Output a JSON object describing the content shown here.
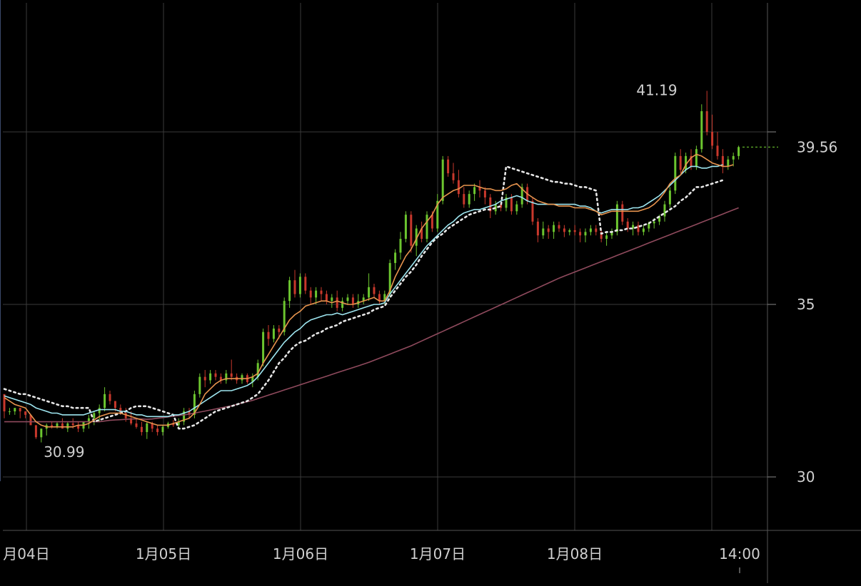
{
  "chart_data": {
    "type": "candlestick",
    "x_tick_labels": [
      "月04日",
      "1月05日",
      "1月06日",
      "1月07日",
      "1月08日",
      "14:00"
    ],
    "y_tick_labels": [
      "30",
      "35"
    ],
    "y_range": [
      28.5,
      42.8
    ],
    "current_price": {
      "value": 39.56,
      "label": "39.56"
    },
    "annotations": [
      {
        "text": "41.19",
        "kind": "high",
        "value": 41.19,
        "bar": 129
      },
      {
        "text": "30.99",
        "kind": "low",
        "value": 30.99,
        "bar": 28
      }
    ],
    "colors": {
      "up": "#6cc52f",
      "down": "#c8382c",
      "ma_orange": "#e8944e",
      "ma_cyan": "#9ee6f0",
      "ma_dotted": "#e6e6e6",
      "ma_maroon": "#8f4a5d",
      "grid": "#3a3a3a",
      "label": "#d0d0d0"
    },
    "candles": [
      [
        32.4,
        32.4,
        31.7,
        31.9
      ],
      [
        31.9,
        32.0,
        31.8,
        31.9
      ],
      [
        31.9,
        32.0,
        31.8,
        32.0
      ],
      [
        32.0,
        32.0,
        31.7,
        31.9
      ],
      [
        31.9,
        31.9,
        31.7,
        31.8
      ],
      [
        31.8,
        31.8,
        31.5,
        31.5
      ],
      [
        31.5,
        31.5,
        31.1,
        31.15
      ],
      [
        31.15,
        31.4,
        31.0,
        31.4
      ],
      [
        31.4,
        31.55,
        31.2,
        31.5
      ],
      [
        31.5,
        31.6,
        31.4,
        31.45
      ],
      [
        31.45,
        31.6,
        31.4,
        31.55
      ],
      [
        31.55,
        31.7,
        31.45,
        31.4
      ],
      [
        31.4,
        31.6,
        31.3,
        31.55
      ],
      [
        31.55,
        31.7,
        31.4,
        31.5
      ],
      [
        31.5,
        31.6,
        31.3,
        31.4
      ],
      [
        31.4,
        31.6,
        31.3,
        31.6
      ],
      [
        31.6,
        31.8,
        31.4,
        31.7
      ],
      [
        31.7,
        31.9,
        31.5,
        31.85
      ],
      [
        31.85,
        32.1,
        31.6,
        32.0
      ],
      [
        32.0,
        32.6,
        31.9,
        32.4
      ],
      [
        32.4,
        32.5,
        32.1,
        32.2
      ],
      [
        32.2,
        32.2,
        31.9,
        32.0
      ],
      [
        32.0,
        32.1,
        31.8,
        31.85
      ],
      [
        31.85,
        32.0,
        31.6,
        31.7
      ],
      [
        31.7,
        31.9,
        31.5,
        31.55
      ],
      [
        31.55,
        31.7,
        31.4,
        31.45
      ],
      [
        31.45,
        31.6,
        31.2,
        31.3
      ],
      [
        31.3,
        31.6,
        31.1,
        31.55
      ],
      [
        31.55,
        31.6,
        31.3,
        31.4
      ],
      [
        31.4,
        31.5,
        31.2,
        31.3
      ],
      [
        31.3,
        31.5,
        31.2,
        31.45
      ],
      [
        31.45,
        31.6,
        31.4,
        31.55
      ],
      [
        31.55,
        31.65,
        31.45,
        31.5
      ],
      [
        31.5,
        31.7,
        31.4,
        31.6
      ],
      [
        31.6,
        32.0,
        31.5,
        31.9
      ],
      [
        31.9,
        32.0,
        31.7,
        31.8
      ],
      [
        31.8,
        32.5,
        31.7,
        32.4
      ],
      [
        32.4,
        33.0,
        32.3,
        32.9
      ],
      [
        32.9,
        33.1,
        32.6,
        32.8
      ],
      [
        32.8,
        33.1,
        32.7,
        33.0
      ],
      [
        33.0,
        33.1,
        32.8,
        32.9
      ],
      [
        32.9,
        33.0,
        32.7,
        32.8
      ],
      [
        32.8,
        33.1,
        32.7,
        33.0
      ],
      [
        33.0,
        33.4,
        32.8,
        32.9
      ],
      [
        32.9,
        33.0,
        32.7,
        32.8
      ],
      [
        32.8,
        33.0,
        32.7,
        32.95
      ],
      [
        32.95,
        33.0,
        32.7,
        32.75
      ],
      [
        32.75,
        33.0,
        32.6,
        32.9
      ],
      [
        32.9,
        33.4,
        32.8,
        33.3
      ],
      [
        33.3,
        34.3,
        33.2,
        34.2
      ],
      [
        34.2,
        34.4,
        33.8,
        34.0
      ],
      [
        34.0,
        34.4,
        33.9,
        34.3
      ],
      [
        34.3,
        34.4,
        34.0,
        34.2
      ],
      [
        34.2,
        35.2,
        34.1,
        35.1
      ],
      [
        35.1,
        35.8,
        34.9,
        35.7
      ],
      [
        35.7,
        36.0,
        35.2,
        35.3
      ],
      [
        35.3,
        35.9,
        35.2,
        35.8
      ],
      [
        35.8,
        35.9,
        35.3,
        35.4
      ],
      [
        35.4,
        35.5,
        35.0,
        35.2
      ],
      [
        35.2,
        35.5,
        35.0,
        35.4
      ],
      [
        35.4,
        35.5,
        35.1,
        35.3
      ],
      [
        35.3,
        35.4,
        35.0,
        35.1
      ],
      [
        35.1,
        35.3,
        34.9,
        35.2
      ],
      [
        35.2,
        35.4,
        34.8,
        34.9
      ],
      [
        34.9,
        35.2,
        34.8,
        35.1
      ],
      [
        35.1,
        35.3,
        35.0,
        35.2
      ],
      [
        35.2,
        35.3,
        34.9,
        35.0
      ],
      [
        35.0,
        35.3,
        34.9,
        35.1
      ],
      [
        35.1,
        35.3,
        35.0,
        35.2
      ],
      [
        35.2,
        35.9,
        35.1,
        35.5
      ],
      [
        35.5,
        35.6,
        35.2,
        35.3
      ],
      [
        35.3,
        35.4,
        35.0,
        35.1
      ],
      [
        35.1,
        35.4,
        35.0,
        35.3
      ],
      [
        35.3,
        36.3,
        35.2,
        36.2
      ],
      [
        36.2,
        36.6,
        36.0,
        36.5
      ],
      [
        36.5,
        37.1,
        36.3,
        36.9
      ],
      [
        36.9,
        37.7,
        36.8,
        37.6
      ],
      [
        37.6,
        37.7,
        36.5,
        36.7
      ],
      [
        36.7,
        37.3,
        36.4,
        37.2
      ],
      [
        37.2,
        37.4,
        36.8,
        36.9
      ],
      [
        36.9,
        37.7,
        36.8,
        37.6
      ],
      [
        37.6,
        37.7,
        37.1,
        37.2
      ],
      [
        37.2,
        38.2,
        37.1,
        38.0
      ],
      [
        38.0,
        39.3,
        37.9,
        39.2
      ],
      [
        39.2,
        39.3,
        38.7,
        38.8
      ],
      [
        38.8,
        39.1,
        38.5,
        38.6
      ],
      [
        38.6,
        38.9,
        38.1,
        38.2
      ],
      [
        38.2,
        38.4,
        37.8,
        37.9
      ],
      [
        37.9,
        38.3,
        37.8,
        38.2
      ],
      [
        38.2,
        38.5,
        38.0,
        38.4
      ],
      [
        38.4,
        38.6,
        38.1,
        38.3
      ],
      [
        38.3,
        38.4,
        37.9,
        38.1
      ],
      [
        38.1,
        38.2,
        37.5,
        37.7
      ],
      [
        37.7,
        38.0,
        37.6,
        37.9
      ],
      [
        37.9,
        38.0,
        37.7,
        37.8
      ],
      [
        37.8,
        38.2,
        37.7,
        38.1
      ],
      [
        38.1,
        38.2,
        37.6,
        37.7
      ],
      [
        37.7,
        38.0,
        37.6,
        37.9
      ],
      [
        37.9,
        38.5,
        37.8,
        38.4
      ],
      [
        38.4,
        38.5,
        37.9,
        38.0
      ],
      [
        38.0,
        38.1,
        37.3,
        37.4
      ],
      [
        37.4,
        37.5,
        36.8,
        37.0
      ],
      [
        37.0,
        37.4,
        36.9,
        37.2
      ],
      [
        37.2,
        37.3,
        36.9,
        37.1
      ],
      [
        37.1,
        37.4,
        36.9,
        37.3
      ],
      [
        37.3,
        37.4,
        37.1,
        37.2
      ],
      [
        37.2,
        37.3,
        36.95,
        37.1
      ],
      [
        37.1,
        37.2,
        37.0,
        37.15
      ],
      [
        37.15,
        37.3,
        37.0,
        37.1
      ],
      [
        37.1,
        37.2,
        36.8,
        37.0
      ],
      [
        37.0,
        37.2,
        36.8,
        37.1
      ],
      [
        37.1,
        37.3,
        37.0,
        37.2
      ],
      [
        37.2,
        37.3,
        37.0,
        37.1
      ],
      [
        37.1,
        37.2,
        36.8,
        36.9
      ],
      [
        36.9,
        37.1,
        36.7,
        37.0
      ],
      [
        37.0,
        37.2,
        36.9,
        37.1
      ],
      [
        37.1,
        38.0,
        37.0,
        37.9
      ],
      [
        37.9,
        38.0,
        37.3,
        37.4
      ],
      [
        37.4,
        37.5,
        37.1,
        37.2
      ],
      [
        37.2,
        37.4,
        37.0,
        37.3
      ],
      [
        37.3,
        37.4,
        37.0,
        37.1
      ],
      [
        37.1,
        37.3,
        37.0,
        37.2
      ],
      [
        37.2,
        37.4,
        37.1,
        37.35
      ],
      [
        37.35,
        37.5,
        37.2,
        37.4
      ],
      [
        37.4,
        37.6,
        37.3,
        37.55
      ],
      [
        37.55,
        38.0,
        37.4,
        37.9
      ],
      [
        37.9,
        38.4,
        37.8,
        38.3
      ],
      [
        38.3,
        39.4,
        38.2,
        39.3
      ],
      [
        39.3,
        39.5,
        38.8,
        38.9
      ],
      [
        38.9,
        39.4,
        38.8,
        39.3
      ],
      [
        39.3,
        39.5,
        38.9,
        39.0
      ],
      [
        39.0,
        39.6,
        38.9,
        39.5
      ],
      [
        39.5,
        40.8,
        39.4,
        40.6
      ],
      [
        40.6,
        41.19,
        39.9,
        40.0
      ],
      [
        40.0,
        40.5,
        39.5,
        39.6
      ],
      [
        39.6,
        40.0,
        39.2,
        39.3
      ],
      [
        39.3,
        39.5,
        38.8,
        39.0
      ],
      [
        39.0,
        39.3,
        38.9,
        39.2
      ],
      [
        39.2,
        39.4,
        39.0,
        39.3
      ],
      [
        39.3,
        39.6,
        39.2,
        39.56
      ]
    ],
    "ma_orange": [
      32.3,
      32.2,
      32.1,
      32.05,
      32.0,
      31.8,
      31.6,
      31.5,
      31.45,
      31.45,
      31.45,
      31.45,
      31.45,
      31.45,
      31.5,
      31.5,
      31.55,
      31.65,
      31.75,
      31.8,
      31.85,
      31.85,
      31.85,
      31.8,
      31.75,
      31.7,
      31.65,
      31.6,
      31.55,
      31.5,
      31.5,
      31.5,
      31.55,
      31.6,
      31.65,
      31.7,
      31.85,
      32.1,
      32.4,
      32.55,
      32.7,
      32.8,
      32.85,
      32.85,
      32.85,
      32.85,
      32.85,
      32.9,
      33.0,
      33.3,
      33.55,
      33.8,
      34.05,
      34.3,
      34.55,
      34.7,
      34.8,
      34.95,
      35.0,
      35.05,
      35.1,
      35.1,
      35.05,
      35.1,
      35.05,
      35.0,
      35.0,
      35.05,
      35.1,
      35.15,
      35.2,
      35.1,
      35.1,
      35.4,
      35.8,
      36.1,
      36.4,
      36.6,
      36.9,
      37.2,
      37.4,
      37.6,
      37.9,
      38.1,
      38.2,
      38.3,
      38.35,
      38.45,
      38.45,
      38.45,
      38.4,
      38.35,
      38.35,
      38.3,
      38.3,
      38.35,
      38.45,
      38.5,
      38.35,
      38.2,
      38.1,
      38.0,
      37.95,
      37.9,
      37.9,
      37.85,
      37.85,
      37.85,
      37.8,
      37.8,
      37.8,
      37.75,
      37.7,
      37.6,
      37.65,
      37.7,
      37.7,
      37.7,
      37.7,
      37.7,
      37.7,
      37.75,
      37.8,
      37.9,
      38.05,
      38.25,
      38.5,
      38.65,
      38.75,
      39.05,
      39.25,
      39.35,
      39.3,
      39.2,
      39.1,
      39.05,
      39.0,
      39.0,
      39.05
    ],
    "ma_cyan": [
      32.35,
      32.3,
      32.25,
      32.2,
      32.15,
      32.1,
      32.0,
      31.95,
      31.9,
      31.85,
      31.85,
      31.8,
      31.8,
      31.8,
      31.8,
      31.8,
      31.85,
      31.9,
      31.95,
      31.95,
      31.95,
      31.95,
      31.9,
      31.9,
      31.85,
      31.8,
      31.8,
      31.75,
      31.75,
      31.75,
      31.75,
      31.75,
      31.8,
      31.8,
      31.85,
      31.9,
      32.0,
      32.1,
      32.2,
      32.3,
      32.4,
      32.5,
      32.5,
      32.5,
      32.55,
      32.6,
      32.65,
      32.75,
      32.9,
      33.1,
      33.3,
      33.5,
      33.7,
      33.9,
      34.05,
      34.2,
      34.3,
      34.45,
      34.55,
      34.6,
      34.65,
      34.7,
      34.7,
      34.75,
      34.7,
      34.75,
      34.8,
      34.85,
      34.9,
      34.95,
      35.0,
      35.0,
      35.05,
      35.3,
      35.5,
      35.7,
      35.9,
      36.1,
      36.3,
      36.5,
      36.7,
      36.85,
      37.0,
      37.15,
      37.3,
      37.4,
      37.55,
      37.65,
      37.7,
      37.75,
      37.75,
      37.8,
      37.85,
      37.9,
      38.0,
      38.05,
      38.1,
      38.15,
      38.1,
      38.0,
      37.95,
      37.9,
      37.9,
      37.9,
      37.9,
      37.9,
      37.9,
      37.9,
      37.9,
      37.85,
      37.85,
      37.8,
      37.7,
      37.65,
      37.7,
      37.75,
      37.75,
      37.75,
      37.75,
      37.8,
      37.8,
      37.85,
      37.95,
      38.05,
      38.15,
      38.3,
      38.45,
      38.6,
      38.75,
      38.9,
      39.0,
      39.0,
      38.95,
      38.95,
      39.0,
      39.0,
      39.05
    ],
    "ma_dotted": [
      32.55,
      32.5,
      32.45,
      32.4,
      32.4,
      32.35,
      32.3,
      32.25,
      32.2,
      32.15,
      32.1,
      32.05,
      32.05,
      32.0,
      32.0,
      32.0,
      32.0,
      31.6,
      31.65,
      31.7,
      31.75,
      31.8,
      31.85,
      31.9,
      32.0,
      32.05,
      32.05,
      32.05,
      32.0,
      31.95,
      31.9,
      31.85,
      31.8,
      31.4,
      31.4,
      31.45,
      31.5,
      31.6,
      31.7,
      31.8,
      31.9,
      31.95,
      32.0,
      32.05,
      32.1,
      32.15,
      32.2,
      32.3,
      32.4,
      32.6,
      32.8,
      33.05,
      33.3,
      33.45,
      33.65,
      33.8,
      33.9,
      33.95,
      34.05,
      34.15,
      34.2,
      34.3,
      34.35,
      34.4,
      34.5,
      34.55,
      34.6,
      34.65,
      34.7,
      34.75,
      34.85,
      34.9,
      34.95,
      35.2,
      35.4,
      35.6,
      35.8,
      35.95,
      36.15,
      36.4,
      36.6,
      36.8,
      36.95,
      37.05,
      37.2,
      37.3,
      37.4,
      37.5,
      37.6,
      37.65,
      37.7,
      37.75,
      37.75,
      37.8,
      37.85,
      39.0,
      38.95,
      38.9,
      38.85,
      38.8,
      38.75,
      38.7,
      38.65,
      38.6,
      38.55,
      38.55,
      38.5,
      38.5,
      38.45,
      38.4,
      38.4,
      38.35,
      38.3,
      37.05,
      37.1,
      37.1,
      37.15,
      37.15,
      37.2,
      37.2,
      37.25,
      37.3,
      37.35,
      37.45,
      37.55,
      37.65,
      37.75,
      37.85,
      38.0,
      38.1,
      38.25,
      38.4,
      38.4,
      38.45,
      38.5,
      38.55,
      38.6
    ],
    "ma_maroon": [
      31.6,
      31.6,
      31.6,
      31.6,
      31.6,
      31.6,
      31.6,
      31.6,
      31.6,
      31.6,
      31.6,
      31.6,
      31.6,
      31.6,
      31.6,
      31.6,
      31.6,
      31.6,
      31.6,
      31.62,
      31.64,
      31.65,
      31.66,
      31.67,
      31.68,
      31.68,
      31.68,
      31.67,
      31.68,
      31.7,
      31.72,
      31.74,
      31.76,
      31.78,
      31.8,
      31.82,
      31.85,
      31.88,
      31.91,
      31.94,
      31.97,
      32.0,
      32.03,
      32.06,
      32.1,
      32.14,
      32.18,
      32.22,
      32.27,
      32.32,
      32.37,
      32.42,
      32.47,
      32.52,
      32.57,
      32.62,
      32.67,
      32.72,
      32.77,
      32.82,
      32.87,
      32.92,
      32.97,
      33.02,
      33.07,
      33.12,
      33.17,
      33.22,
      33.27,
      33.32,
      33.38,
      33.44,
      33.5,
      33.56,
      33.62,
      33.68,
      33.74,
      33.8,
      33.87,
      33.94,
      34.01,
      34.08,
      34.15,
      34.22,
      34.29,
      34.36,
      34.43,
      34.5,
      34.57,
      34.64,
      34.71,
      34.78,
      34.85,
      34.92,
      34.99,
      35.06,
      35.13,
      35.2,
      35.27,
      35.34,
      35.41,
      35.48,
      35.55,
      35.62,
      35.69,
      35.76,
      35.82,
      35.88,
      35.94,
      36.0,
      36.06,
      36.12,
      36.18,
      36.24,
      36.3,
      36.36,
      36.42,
      36.48,
      36.54,
      36.6,
      36.66,
      36.72,
      36.78,
      36.84,
      36.9,
      36.96,
      37.02,
      37.08,
      37.14,
      37.2,
      37.26,
      37.32,
      37.38,
      37.44,
      37.5,
      37.56,
      37.62,
      37.68,
      37.74,
      37.8
    ]
  }
}
